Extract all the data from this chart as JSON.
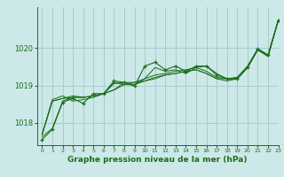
{
  "title": "Graphe pression niveau de la mer (hPa)",
  "bg_color": "#cce8e8",
  "grid_color": "#aacccc",
  "line_color": "#1a6e1a",
  "xlim": [
    -0.5,
    23
  ],
  "ylim": [
    1017.4,
    1021.1
  ],
  "yticks": [
    1018,
    1019,
    1020
  ],
  "xticks": [
    0,
    1,
    2,
    3,
    4,
    5,
    6,
    7,
    8,
    9,
    10,
    11,
    12,
    13,
    14,
    15,
    16,
    17,
    18,
    19,
    20,
    21,
    22,
    23
  ],
  "series": [
    [
      1017.68,
      1018.62,
      1018.72,
      1018.58,
      1018.62,
      1018.68,
      1018.78,
      1019.05,
      1019.08,
      1019.02,
      1019.18,
      1019.28,
      1019.32,
      1019.38,
      1019.42,
      1019.48,
      1019.38,
      1019.22,
      1019.18,
      1019.22,
      1019.52,
      1019.98,
      1019.82,
      1020.75
    ],
    [
      1017.68,
      1018.58,
      1018.65,
      1018.72,
      1018.68,
      1018.72,
      1018.78,
      1019.08,
      1019.02,
      1019.02,
      1019.12,
      1019.22,
      1019.28,
      1019.32,
      1019.38,
      1019.42,
      1019.32,
      1019.18,
      1019.18,
      1019.18,
      1019.48,
      1019.95,
      1019.78,
      1020.75
    ],
    [
      1017.68,
      1018.58,
      1018.65,
      1018.68,
      1018.68,
      1018.72,
      1018.78,
      1018.88,
      1019.02,
      1019.08,
      1019.12,
      1019.18,
      1019.28,
      1019.32,
      1019.38,
      1019.42,
      1019.32,
      1019.18,
      1019.12,
      1019.18,
      1019.48,
      1019.95,
      1019.78,
      1020.75
    ],
    [
      1017.62,
      1017.85,
      1018.58,
      1018.68,
      1018.68,
      1018.72,
      1018.78,
      1018.88,
      1019.08,
      1019.08,
      1019.18,
      1019.48,
      1019.38,
      1019.42,
      1019.32,
      1019.48,
      1019.52,
      1019.32,
      1019.18,
      1019.18,
      1019.48,
      1019.98,
      1019.78,
      1020.75
    ]
  ],
  "main_series": [
    1017.55,
    1017.82,
    1018.55,
    1018.65,
    1018.52,
    1018.78,
    1018.78,
    1019.12,
    1019.08,
    1018.98,
    1019.52,
    1019.62,
    1019.42,
    1019.52,
    1019.38,
    1019.52,
    1019.52,
    1019.28,
    1019.18,
    1019.18,
    1019.48,
    1019.98,
    1019.82,
    1020.75
  ]
}
